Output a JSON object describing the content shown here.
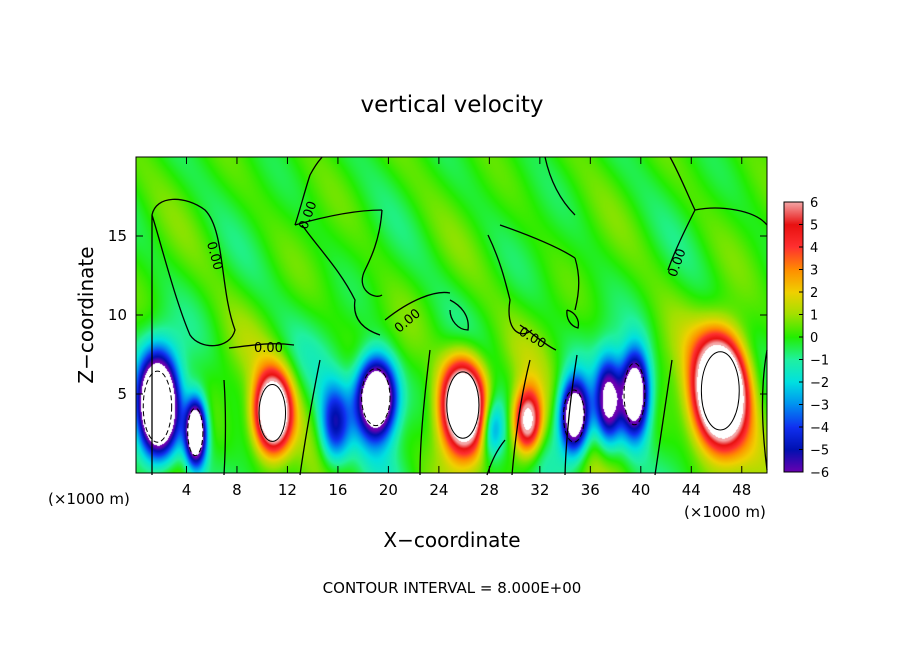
{
  "chart_data": {
    "type": "heatmap",
    "title": "vertical velocity",
    "xlabel": "X−coordinate",
    "ylabel": "Z−coordinate",
    "x_unit": "(×1000 m)",
    "footer": "CONTOUR INTERVAL = 8.000E+00",
    "xlim": [
      0,
      50
    ],
    "ylim": [
      0,
      20
    ],
    "x_ticks": [
      4,
      8,
      12,
      16,
      20,
      24,
      28,
      32,
      36,
      40,
      44,
      48
    ],
    "x_tick_labels": [
      "4",
      "8",
      "12",
      "16",
      "20",
      "24",
      "28",
      "32",
      "36",
      "40",
      "44",
      "48"
    ],
    "y_ticks": [
      5,
      10,
      15
    ],
    "y_tick_labels": [
      "5",
      "10",
      "15"
    ],
    "colorbar": {
      "min": -6,
      "max": 6,
      "levels": [
        6,
        5,
        4,
        3,
        2,
        1,
        0,
        -1,
        -2,
        -3,
        -4,
        -5,
        -6
      ],
      "labels": [
        "6",
        "5",
        "4",
        "3",
        "2",
        "1",
        "0",
        "−1",
        "−2",
        "−3",
        "−4",
        "−5",
        "−6"
      ]
    },
    "contour_label": "0.00",
    "cells": [
      {
        "x": 1.7,
        "z": 4.2,
        "sx": 1.5,
        "sz": 3.0,
        "amp": -14
      },
      {
        "x": 4.7,
        "z": 2.6,
        "sx": 0.8,
        "sz": 2.0,
        "amp": -11
      },
      {
        "x": 10.8,
        "z": 3.8,
        "sx": 1.4,
        "sz": 2.4,
        "amp": 12
      },
      {
        "x": 15.7,
        "z": 3.0,
        "sx": 1.2,
        "sz": 2.5,
        "amp": -5
      },
      {
        "x": 19.0,
        "z": 4.8,
        "sx": 1.5,
        "sz": 2.4,
        "amp": -12
      },
      {
        "x": 25.9,
        "z": 4.3,
        "sx": 1.7,
        "sz": 2.8,
        "amp": 12
      },
      {
        "x": 28.2,
        "z": 2.8,
        "sx": 1.0,
        "sz": 2.0,
        "amp": -4
      },
      {
        "x": 31.0,
        "z": 3.3,
        "sx": 1.1,
        "sz": 2.0,
        "amp": 8
      },
      {
        "x": 34.7,
        "z": 3.6,
        "sx": 1.1,
        "sz": 2.2,
        "amp": -10
      },
      {
        "x": 37.4,
        "z": 4.6,
        "sx": 1.0,
        "sz": 2.6,
        "amp": -7
      },
      {
        "x": 39.5,
        "z": 5.0,
        "sx": 1.1,
        "sz": 2.6,
        "amp": -10
      },
      {
        "x": 46.3,
        "z": 5.2,
        "sx": 2.0,
        "sz": 3.3,
        "amp": 15
      }
    ],
    "colors": {
      "pos6": "#f4a6a6",
      "pos5": "#e81010",
      "pos4": "#ff3030",
      "pos3": "#ff8c00",
      "pos2": "#f0d000",
      "pos1": "#a0e000",
      "zero": "#22ee00",
      "neg1": "#20f0a0",
      "neg2": "#00e0e0",
      "neg3": "#0090f0",
      "neg4": "#1030f0",
      "neg5": "#0010b0",
      "neg6": "#6a00b0",
      "saturated": "#ffffff"
    }
  }
}
